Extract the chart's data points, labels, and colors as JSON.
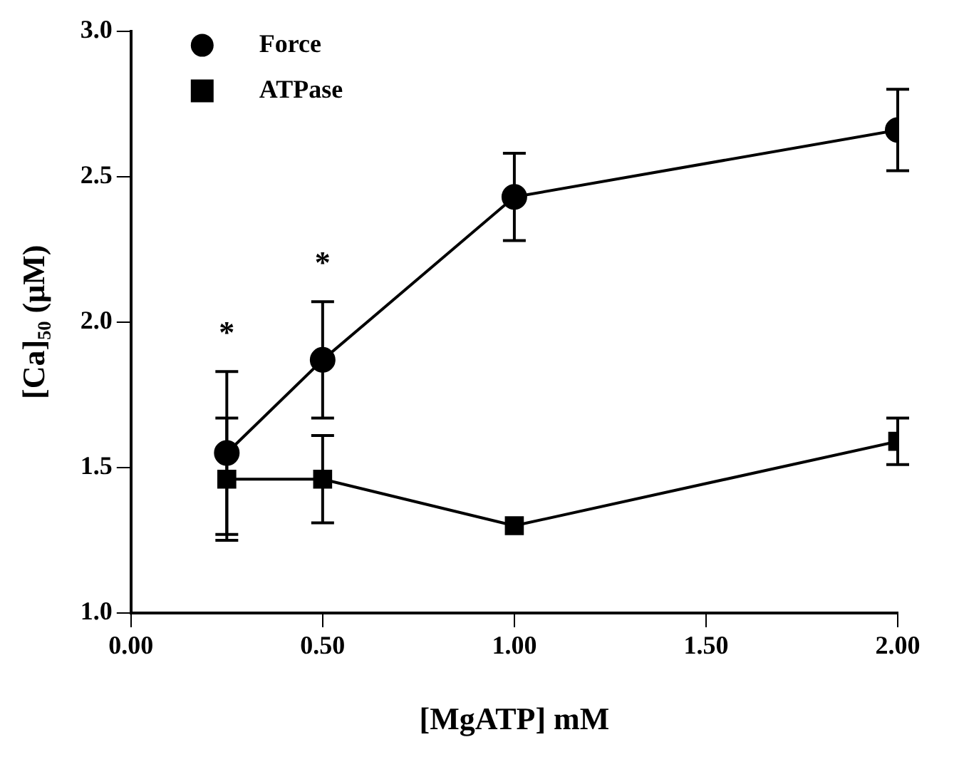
{
  "chart_data": {
    "type": "line",
    "xlabel": "[MgATP] mM",
    "ylabel": "[Ca]₅₀ (μM)",
    "xlim": [
      0,
      2
    ],
    "xticks": [
      {
        "value": 0,
        "label": "0.00"
      },
      {
        "value": 0.5,
        "label": "0.50"
      },
      {
        "value": 1,
        "label": "1.00"
      },
      {
        "value": 1.5,
        "label": "1.50"
      },
      {
        "value": 2,
        "label": "2.00"
      }
    ],
    "ylim": [
      1,
      3
    ],
    "yticks": [
      {
        "value": 1,
        "label": "1.0"
      },
      {
        "value": 1.5,
        "label": "1.5"
      },
      {
        "value": 2,
        "label": "2.0"
      },
      {
        "value": 2.5,
        "label": "2.5"
      },
      {
        "value": 3,
        "label": "3.0"
      }
    ],
    "x": [
      0.25,
      0.5,
      1,
      2
    ],
    "series": [
      {
        "name": "Force",
        "color": "#000000",
        "marker": "circle",
        "values": [
          1.55,
          1.87,
          2.43,
          2.66
        ],
        "errors": [
          0.28,
          0.2,
          0.15,
          0.14
        ]
      },
      {
        "name": "ATPase",
        "color": "#000000",
        "marker": "square",
        "values": [
          1.46,
          1.46,
          1.3,
          1.59
        ],
        "errors": [
          0.21,
          0.15,
          null,
          0.08
        ]
      }
    ],
    "annotations": [
      "*",
      "*"
    ],
    "legend": "top left",
    "grid": false
  }
}
